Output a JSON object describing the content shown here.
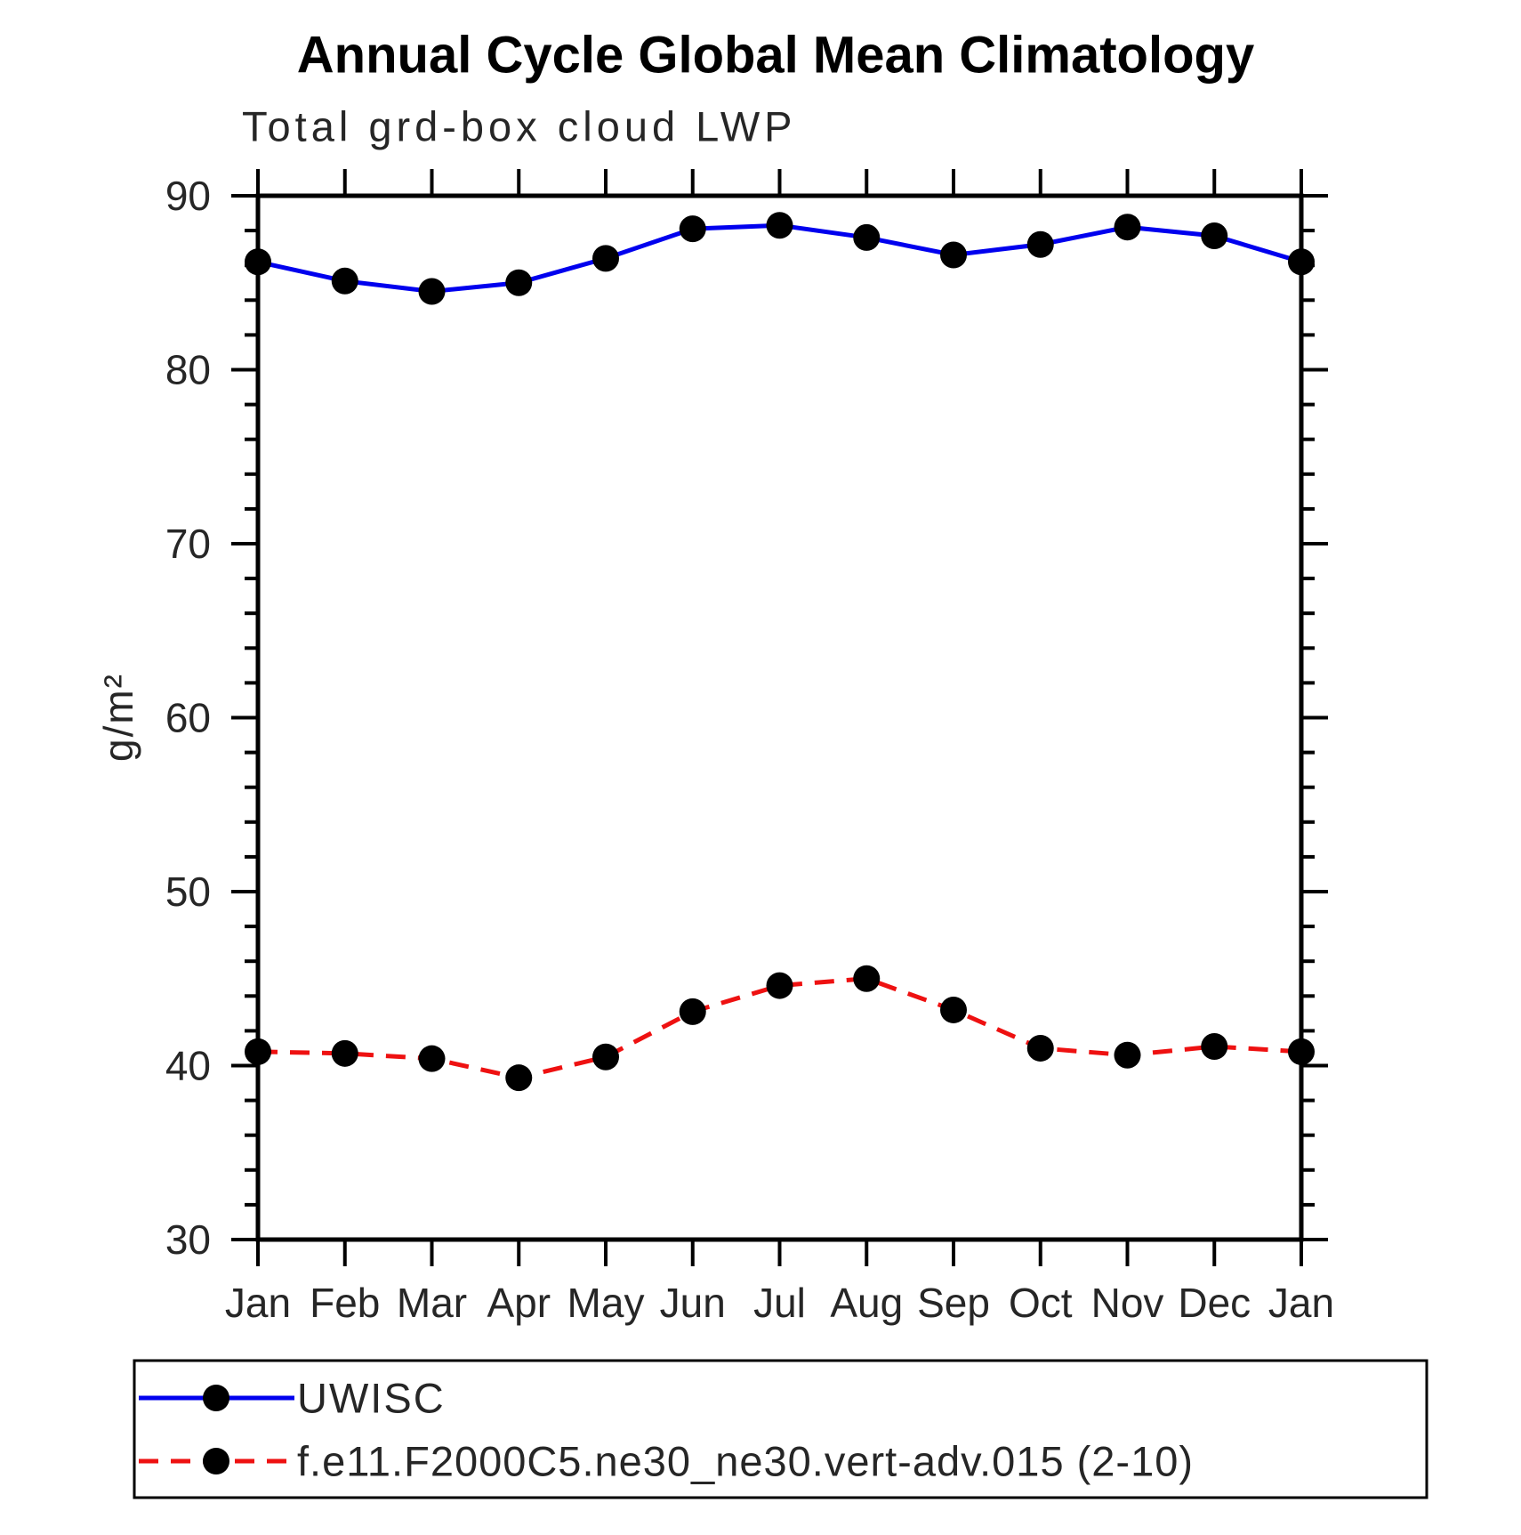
{
  "chart_data": {
    "type": "line",
    "title": "Annual Cycle Global Mean Climatology",
    "subtitle": "Total grd-box cloud LWP",
    "ylabel": "g/m²",
    "ylim": [
      30,
      90
    ],
    "y_major_ticks": [
      30,
      40,
      50,
      60,
      70,
      80,
      90
    ],
    "y_minor_step": 2,
    "x_categories": [
      "Jan",
      "Feb",
      "Mar",
      "Apr",
      "May",
      "Jun",
      "Jul",
      "Aug",
      "Sep",
      "Oct",
      "Nov",
      "Dec",
      "Jan"
    ],
    "grid": "off",
    "legend_position": "bottom",
    "series": [
      {
        "name": "UWISC",
        "color": "#0000ee",
        "line_style": "solid",
        "marker": "filled-circle",
        "marker_color": "#000000",
        "values": [
          86.2,
          85.1,
          84.5,
          85.0,
          86.4,
          88.1,
          88.3,
          87.6,
          86.6,
          87.2,
          88.2,
          87.7,
          86.2
        ]
      },
      {
        "name": "f.e11.F2000C5.ne30_ne30.vert-adv.015 (2-10)",
        "color": "#ee1111",
        "line_style": "dashed",
        "marker": "filled-circle",
        "marker_color": "#000000",
        "values": [
          40.8,
          40.7,
          40.4,
          39.3,
          40.5,
          43.1,
          44.6,
          45.0,
          43.2,
          41.0,
          40.6,
          41.1,
          40.8
        ]
      }
    ]
  }
}
